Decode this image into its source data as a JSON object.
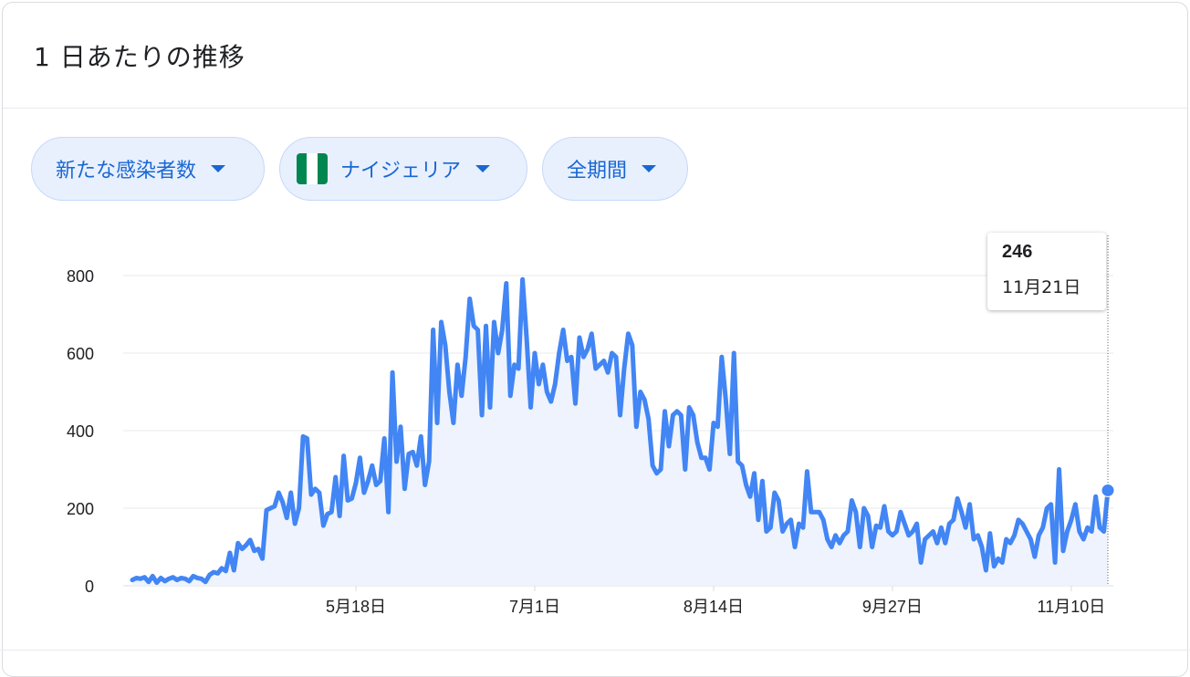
{
  "card": {
    "title": "1 日あたりの推移"
  },
  "filters": [
    {
      "label": "新たな感染者数"
    },
    {
      "label": "ナイジェリア",
      "flag": [
        "#008751",
        "#ffffff",
        "#008751"
      ]
    },
    {
      "label": "全期間"
    }
  ],
  "tooltip": {
    "value": "246",
    "date": "11月21日"
  },
  "colors": {
    "line": "#4285f4",
    "area": "#eef3fd",
    "grid": "#e8eaed",
    "chip_text": "#1967d2"
  },
  "chart_data": {
    "type": "area",
    "title": "",
    "xlabel": "",
    "ylabel": "",
    "start_date": "2020-03-24",
    "y_ticks": [
      0,
      200,
      400,
      600,
      800
    ],
    "ylim": [
      0,
      800
    ],
    "x_ticks": [
      {
        "date": "2020-05-18",
        "label": "5月18日"
      },
      {
        "date": "2020-07-01",
        "label": "7月1日"
      },
      {
        "date": "2020-08-14",
        "label": "8月14日"
      },
      {
        "date": "2020-09-27",
        "label": "9月27日"
      },
      {
        "date": "2020-11-10",
        "label": "11月10日"
      }
    ],
    "grid": true,
    "values": [
      15,
      20,
      18,
      22,
      10,
      25,
      8,
      20,
      12,
      18,
      22,
      15,
      20,
      18,
      12,
      25,
      20,
      18,
      10,
      28,
      35,
      32,
      45,
      38,
      85,
      40,
      110,
      95,
      105,
      118,
      90,
      95,
      70,
      195,
      200,
      205,
      240,
      215,
      175,
      240,
      160,
      200,
      385,
      380,
      235,
      250,
      240,
      155,
      185,
      190,
      280,
      180,
      335,
      220,
      225,
      265,
      330,
      240,
      270,
      310,
      260,
      270,
      380,
      190,
      550,
      320,
      410,
      250,
      340,
      345,
      310,
      385,
      260,
      320,
      660,
      420,
      680,
      620,
      500,
      420,
      570,
      490,
      590,
      740,
      670,
      660,
      440,
      670,
      460,
      680,
      600,
      660,
      780,
      490,
      570,
      560,
      790,
      640,
      460,
      600,
      520,
      570,
      500,
      475,
      520,
      600,
      660,
      580,
      590,
      470,
      640,
      590,
      610,
      650,
      560,
      570,
      580,
      550,
      600,
      590,
      440,
      560,
      650,
      620,
      410,
      500,
      480,
      430,
      310,
      290,
      300,
      450,
      360,
      440,
      450,
      440,
      300,
      460,
      440,
      370,
      330,
      330,
      300,
      420,
      410,
      590,
      480,
      340,
      600,
      320,
      310,
      260,
      230,
      290,
      170,
      270,
      140,
      150,
      240,
      220,
      140,
      160,
      170,
      100,
      160,
      150,
      295,
      190,
      190,
      190,
      170,
      120,
      100,
      130,
      110,
      130,
      140,
      220,
      190,
      100,
      200,
      180,
      100,
      155,
      150,
      205,
      140,
      130,
      140,
      190,
      160,
      130,
      140,
      160,
      60,
      120,
      130,
      140,
      110,
      150,
      110,
      160,
      170,
      225,
      190,
      150,
      210,
      120,
      130,
      100,
      40,
      135,
      50,
      70,
      60,
      120,
      110,
      130,
      170,
      160,
      140,
      120,
      75,
      130,
      150,
      200,
      210,
      60,
      300,
      90,
      140,
      170,
      210,
      140,
      120,
      150,
      140,
      230,
      150,
      140,
      246
    ]
  }
}
